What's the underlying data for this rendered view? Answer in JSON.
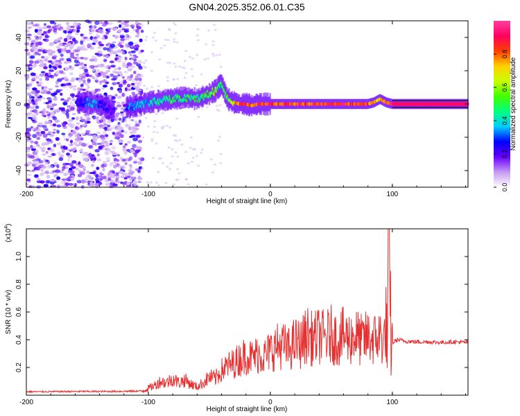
{
  "figure": {
    "title": "GN04.2025.352.06.01.C35"
  },
  "chart_data": [
    {
      "type": "heatmap",
      "xlabel": "Height of straight line (km)",
      "ylabel": "Frequency (Hz)",
      "xlim": [
        -200,
        162
      ],
      "ylim": [
        -50,
        50
      ],
      "xticks": [
        -200,
        -100,
        0,
        100
      ],
      "xtick_labels": [
        "-200",
        "-100",
        "0",
        "100"
      ],
      "yticks": [
        -40,
        -20,
        0,
        20,
        40
      ],
      "ytick_labels": [
        "-40",
        "-20",
        "0",
        "20",
        "40"
      ],
      "colorbar": {
        "label": "Normalized spectral amplitude",
        "range": [
          0,
          1
        ],
        "ticks": [
          0.0,
          0.2,
          0.4,
          0.6,
          0.8
        ],
        "tick_labels": [
          "0.0",
          "0.2",
          "0.4",
          "0.6",
          "0.8"
        ],
        "colormap": [
          "#ffffff",
          "#c49af0",
          "#6a00ff",
          "#0000ff",
          "#00ccff",
          "#00ff80",
          "#40ff00",
          "#c8ff00",
          "#ffd000",
          "#ff4000",
          "#ff0060",
          "#ff40a0"
        ]
      },
      "ridge": {
        "x": [
          -155,
          -150,
          -145,
          -140,
          -135,
          -130,
          -120,
          -110,
          -100,
          -90,
          -80,
          -70,
          -60,
          -50,
          -45,
          -40,
          -35,
          -30,
          -25,
          -20,
          -15,
          -10,
          0,
          10,
          20,
          30,
          40,
          50,
          60,
          70,
          80,
          85,
          90,
          95,
          100,
          110,
          120,
          130,
          140,
          150,
          162
        ],
        "y": [
          1,
          1,
          0,
          0,
          -2,
          -4,
          -2,
          -1,
          1,
          2,
          3,
          4,
          3,
          6,
          8,
          12,
          3,
          1,
          0,
          0,
          -1,
          0,
          0,
          0,
          0,
          0,
          0,
          0,
          0,
          0,
          0,
          1,
          3,
          1,
          0,
          0,
          0,
          0,
          0,
          0,
          0
        ],
        "amplitude": [
          0.25,
          0.35,
          0.4,
          0.3,
          0.25,
          0.2,
          0.3,
          0.35,
          0.4,
          0.45,
          0.5,
          0.5,
          0.5,
          0.55,
          0.6,
          0.5,
          0.55,
          0.7,
          0.85,
          0.9,
          0.85,
          0.9,
          0.9,
          0.9,
          0.9,
          0.9,
          0.9,
          0.9,
          0.9,
          0.9,
          0.85,
          0.8,
          0.75,
          0.85,
          0.95,
          0.95,
          0.95,
          0.95,
          0.95,
          0.95,
          0.95
        ]
      }
    },
    {
      "type": "line",
      "xlabel": "Height of straight line (km)",
      "ylabel": "SNR (10 * v/v)",
      "y_scale_label": "(x10",
      "y_scale_exponent": "4",
      "y_scale_suffix": ")",
      "xlim": [
        -200,
        162
      ],
      "ylim": [
        0,
        12000
      ],
      "xticks": [
        -200,
        -100,
        0,
        100
      ],
      "xtick_labels": [
        "-200",
        "-100",
        "0",
        "100"
      ],
      "yticks": [
        2000,
        4000,
        6000,
        8000,
        10000
      ],
      "ytick_labels": [
        "0.2",
        "0.4",
        "0.6",
        "0.8",
        "1.0"
      ],
      "line_color": "#e83030",
      "series": [
        {
          "x": [
            -200,
            -180,
            -160,
            -140,
            -120,
            -105,
            -100,
            -95,
            -90,
            -85,
            -80,
            -75,
            -70,
            -65,
            -60,
            -55,
            -50,
            -45,
            -40,
            -35,
            -30,
            -25,
            -20,
            -15,
            -10,
            -5,
            0,
            5,
            10,
            15,
            20,
            25,
            30,
            35,
            40,
            45,
            50,
            55,
            60,
            65,
            70,
            75,
            80,
            85,
            90,
            93,
            95,
            96,
            97,
            98,
            99,
            100,
            102,
            105,
            110,
            120,
            130,
            140,
            150,
            162
          ],
          "y": [
            250,
            260,
            270,
            270,
            280,
            300,
            500,
            700,
            1000,
            900,
            1200,
            900,
            1100,
            800,
            600,
            900,
            1300,
            1200,
            1800,
            2100,
            2300,
            2600,
            2900,
            2700,
            3000,
            2800,
            3200,
            3500,
            3600,
            3300,
            3800,
            3700,
            4400,
            4000,
            4300,
            4100,
            4400,
            4000,
            4300,
            4100,
            4300,
            3900,
            4200,
            4000,
            4300,
            3800,
            5700,
            2500,
            11800,
            6500,
            4000,
            3700,
            3900,
            4000,
            3900,
            3850,
            3850,
            3800,
            3850,
            3800
          ]
        }
      ]
    }
  ]
}
